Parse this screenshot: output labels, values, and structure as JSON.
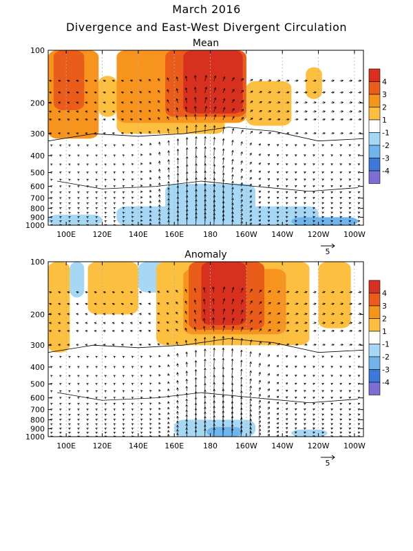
{
  "figure": {
    "title": "March 2016",
    "subtitle": "Divergence and East-West Divergent Circulation"
  },
  "chart_data": [
    {
      "type": "heatmap",
      "title": "Mean",
      "x_ticks": [
        "100E",
        "120E",
        "140E",
        "160E",
        "180",
        "160W",
        "140W",
        "120W",
        "100W"
      ],
      "x_tick_values": [
        100,
        120,
        140,
        160,
        180,
        200,
        220,
        240,
        260
      ],
      "xlim": [
        90,
        265
      ],
      "y_ticks": [
        "100",
        "200",
        "300",
        "400",
        "500",
        "600",
        "700",
        "800",
        "900",
        "1000"
      ],
      "y_tick_values": [
        100,
        200,
        300,
        400,
        500,
        600,
        700,
        800,
        900,
        1000
      ],
      "ylim": [
        1000,
        100
      ],
      "y_scale": "log",
      "vector_reference": "5",
      "regions": [
        {
          "lon": [
            90,
            118
          ],
          "p": [
            100,
            320
          ],
          "value": 2.5
        },
        {
          "lon": [
            93,
            110
          ],
          "p": [
            100,
            220
          ],
          "value": 3.5
        },
        {
          "lon": [
            118,
            128
          ],
          "p": [
            140,
            240
          ],
          "value": 1.5
        },
        {
          "lon": [
            128,
            188
          ],
          "p": [
            100,
            300
          ],
          "value": 1.5
        },
        {
          "lon": [
            128,
            200
          ],
          "p": [
            100,
            260
          ],
          "value": 2.5
        },
        {
          "lon": [
            155,
            200
          ],
          "p": [
            100,
            240
          ],
          "value": 3.5
        },
        {
          "lon": [
            165,
            198
          ],
          "p": [
            100,
            230
          ],
          "value": 4.5
        },
        {
          "lon": [
            200,
            225
          ],
          "p": [
            150,
            270
          ],
          "value": 1.5
        },
        {
          "lon": [
            233,
            242
          ],
          "p": [
            125,
            190
          ],
          "value": 1.5
        },
        {
          "lon": [
            128,
            240
          ],
          "p": [
            780,
            1000
          ],
          "value": -1.5
        },
        {
          "lon": [
            155,
            205
          ],
          "p": [
            580,
            1000
          ],
          "value": -1.5
        },
        {
          "lon": [
            90,
            120
          ],
          "p": [
            870,
            1000
          ],
          "value": -1.5
        },
        {
          "lon": [
            225,
            262
          ],
          "p": [
            900,
            1000
          ],
          "value": -2.5
        }
      ]
    },
    {
      "type": "heatmap",
      "title": "Anomaly",
      "x_ticks": [
        "100E",
        "120E",
        "140E",
        "160E",
        "180",
        "160W",
        "140W",
        "120W",
        "100W"
      ],
      "x_tick_values": [
        100,
        120,
        140,
        160,
        180,
        200,
        220,
        240,
        260
      ],
      "xlim": [
        90,
        265
      ],
      "y_ticks": [
        "100",
        "200",
        "300",
        "400",
        "500",
        "600",
        "700",
        "800",
        "900",
        "1000"
      ],
      "y_tick_values": [
        100,
        200,
        300,
        400,
        500,
        600,
        700,
        800,
        900,
        1000
      ],
      "ylim": [
        1000,
        100
      ],
      "y_scale": "log",
      "vector_reference": "5",
      "regions": [
        {
          "lon": [
            90,
            102
          ],
          "p": [
            100,
            330
          ],
          "value": 1.5
        },
        {
          "lon": [
            102,
            110
          ],
          "p": [
            100,
            160
          ],
          "value": -1.5
        },
        {
          "lon": [
            112,
            140
          ],
          "p": [
            100,
            200
          ],
          "value": 1.5
        },
        {
          "lon": [
            140,
            160
          ],
          "p": [
            100,
            150
          ],
          "value": -1.5
        },
        {
          "lon": [
            150,
            235
          ],
          "p": [
            100,
            300
          ],
          "value": 1.5
        },
        {
          "lon": [
            165,
            222
          ],
          "p": [
            110,
            260
          ],
          "value": 2.5
        },
        {
          "lon": [
            168,
            210
          ],
          "p": [
            100,
            245
          ],
          "value": 3.5
        },
        {
          "lon": [
            175,
            200
          ],
          "p": [
            100,
            230
          ],
          "value": 4.5
        },
        {
          "lon": [
            240,
            258
          ],
          "p": [
            100,
            240
          ],
          "value": 1.5
        },
        {
          "lon": [
            160,
            205
          ],
          "p": [
            800,
            1000
          ],
          "value": -1.5
        },
        {
          "lon": [
            178,
            198
          ],
          "p": [
            880,
            1000
          ],
          "value": -2.5
        },
        {
          "lon": [
            225,
            245
          ],
          "p": [
            910,
            1000
          ],
          "value": -1.5
        }
      ]
    }
  ],
  "colorbar": {
    "labels": [
      "4",
      "3",
      "2",
      "1",
      "-1",
      "-2",
      "-3",
      "-4"
    ],
    "colors": [
      "#d7301f",
      "#e95c1a",
      "#f7941d",
      "#fdbf3f",
      "#ffffff",
      "#a6d8f5",
      "#6fb4ea",
      "#3c78d8",
      "#2a4fc9",
      "#7b6fd6"
    ]
  },
  "style": {
    "contour_color": "#000000",
    "arrow_color": "#000000",
    "grid_color": "#b0b0b0"
  }
}
